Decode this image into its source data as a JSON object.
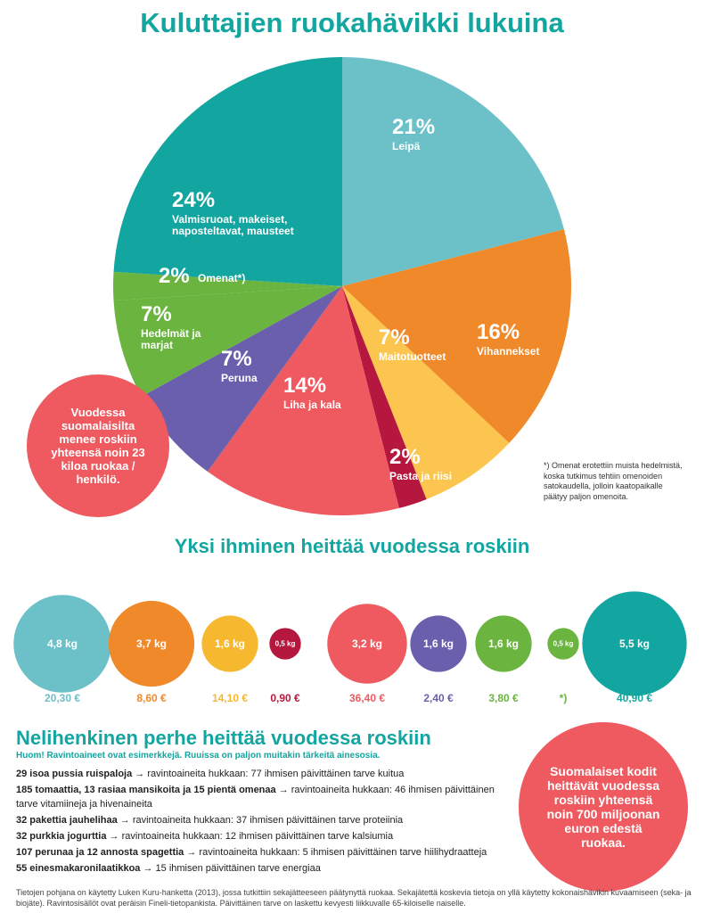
{
  "chart_data": [
    {
      "type": "pie",
      "title": "Kuluttajien ruokahävikki lukuina",
      "categories": [
        "Leipä",
        "Vihannekset",
        "Maitotuotteet",
        "Pasta ja riisi",
        "Liha ja kala",
        "Peruna",
        "Hedelmät ja marjat",
        "Omenat*)",
        "Valmisruoat, makeiset, naposteltavat, mausteet"
      ],
      "values": [
        21,
        16,
        7,
        2,
        14,
        7,
        7,
        2,
        24
      ],
      "value_labels": [
        "21%",
        "16%",
        "7%",
        "2%",
        "14%",
        "7%",
        "7%",
        "2%",
        "24%"
      ],
      "colors": [
        "#6cc0c8",
        "#f0892a",
        "#fbc54f",
        "#b5173f",
        "#ee5a5f",
        "#6a5fad",
        "#6ab43f",
        "#6ab43f",
        "#13a5a0"
      ],
      "note": "*) Omenat erotettiin muista hedelmistä, koska tutkimus tehtiin omenoiden satokaudella, jolloin kaatopaikalle päätyy paljon omenoita."
    },
    {
      "type": "bubble",
      "title": "Yksi ihminen heittää vuodessa roskiin",
      "values": [
        4.8,
        3.7,
        1.6,
        0.5,
        3.2,
        1.6,
        1.6,
        0.5,
        5.5
      ],
      "value_labels": [
        "4,8 kg",
        "3,7 kg",
        "1,6 kg",
        "0,5 kg",
        "3,2 kg",
        "1,6 kg",
        "1,6 kg",
        "0,5 kg",
        "5,5 kg"
      ],
      "costs": [
        "20,30 €",
        "8,60 €",
        "14,10 €",
        "0,90 €",
        "36,40 €",
        "2,40 €",
        "3,80 €",
        "*)",
        "40,90 €"
      ],
      "colors": [
        "#6cc0c8",
        "#f0892a",
        "#f5b82e",
        "#b5173f",
        "#ee5a5f",
        "#6a5fad",
        "#6ab43f",
        "#6ab43f",
        "#13a5a0"
      ]
    }
  ],
  "callout": "Vuodessa suomalaisilta menee roskiin yhteensä noin 23 kiloa ruokaa / henkilö.",
  "family": {
    "title": "Nelihenkinen perhe heittää vuodessa roskiin",
    "subtitle": "Huom! Ravintoaineet ovat esimerkkejä. Ruuissa on paljon muitakin tärkeitä ainesosia.",
    "items": [
      {
        "bold": "29 isoa pussia ruispaloja",
        "text": "→ ravintoaineita hukkaan: 77 ihmisen päivittäinen tarve kuitua"
      },
      {
        "bold": "185 tomaattia, 13 rasiaa mansikoita ja 15 pientä omenaa",
        "text": "→ ravintoaineita hukkaan: 46 ihmisen päivittäinen tarve vitamiineja ja hivenaineita"
      },
      {
        "bold": "32 pakettia jauhelihaa",
        "text": "→ ravintoaineita hukkaan: 37 ihmisen päivittäinen tarve proteiinia"
      },
      {
        "bold": "32 purkkia jogurttia",
        "text": "→ ravintoaineita hukkaan: 12 ihmisen päivittäinen tarve kalsiumia"
      },
      {
        "bold": "107 perunaa ja 12 annosta spagettia",
        "text": "→ ravintoaineita hukkaan: 5 ihmisen päivittäinen tarve hiilihydraatteja"
      },
      {
        "bold": "55 einesmakaronilaatikkoa",
        "text": "→ 15 ihmisen päivittäinen tarve energiaa"
      }
    ]
  },
  "callout2": "Suomalaiset kodit heittävät vuodessa roskiin yhteensä noin 700 miljoonan euron edestä ruokaa.",
  "footer": "Tietojen pohjana on käytetty Luken Kuru-hanketta (2013), jossa tutkittiin sekajätteeseen päätynyttä ruokaa. Sekajätettä koskevia tietoja on yllä käytetty kokonaishävikin kuvaamiseen (seka- ja biojäte). Ravintosisällöt ovat peräisin Fineli-tietopankista. Päivittäinen tarve on laskettu kevyesti liikkuvalle 65-kiloiselle naiselle."
}
